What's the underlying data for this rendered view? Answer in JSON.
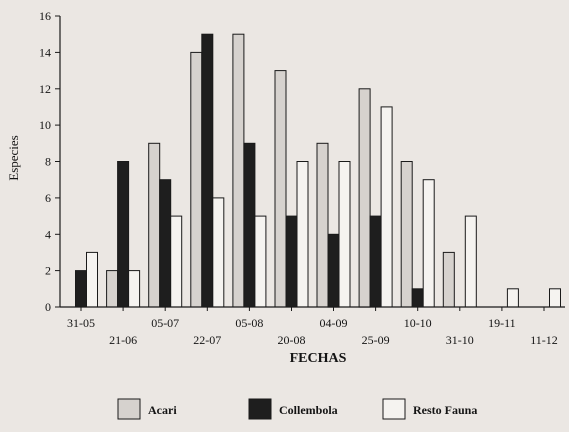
{
  "chart_data": {
    "type": "bar",
    "title": "",
    "xlabel": "FECHAS",
    "ylabel": "Especies",
    "ylim": [
      0,
      16
    ],
    "yticks": [
      0,
      2,
      4,
      6,
      8,
      10,
      12,
      14,
      16
    ],
    "grid": false,
    "legend_position": "bottom",
    "categories": [
      "31-05",
      "21-06",
      "05-07",
      "22-07",
      "05-08",
      "20-08",
      "04-09",
      "25-09",
      "10-10",
      "31-10",
      "19-11",
      "11-12"
    ],
    "series": [
      {
        "name": "Acari",
        "color": "#d6d2ce",
        "values": [
          0,
          2,
          9,
          14,
          15,
          13,
          9,
          12,
          8,
          3,
          0,
          0
        ]
      },
      {
        "name": "Collembola",
        "color": "#1e1e1e",
        "values": [
          2,
          8,
          7,
          15,
          9,
          5,
          4,
          5,
          1,
          0,
          0,
          0
        ]
      },
      {
        "name": "Resto Fauna",
        "color": "#f5f3f0",
        "values": [
          3,
          2,
          5,
          6,
          5,
          8,
          8,
          11,
          7,
          5,
          1,
          1
        ]
      }
    ]
  }
}
